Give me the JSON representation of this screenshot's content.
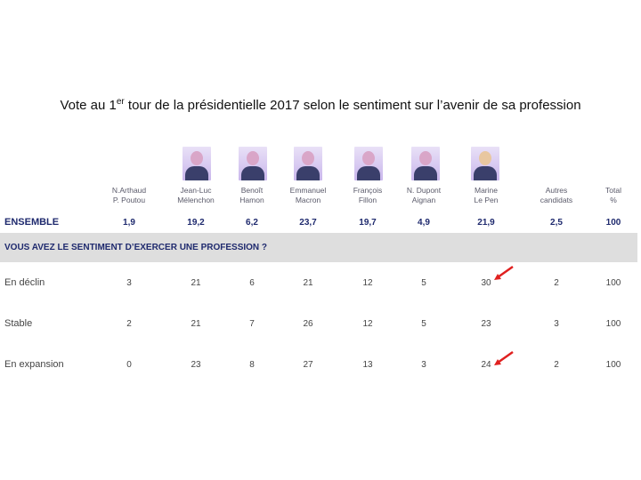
{
  "chart_data": {
    "type": "table",
    "title": "Vote au 1er tour de la présidentielle 2017 selon le sentiment sur l’avenir de sa profession",
    "title_parts": {
      "before": "Vote au 1",
      "superscript": "er",
      "after": " tour de la présidentielle 2017 selon le sentiment sur l’avenir de sa profession"
    },
    "columns": [
      {
        "line1": "N.Arthaud",
        "line2": "P. Poutou"
      },
      {
        "line1": "Jean-Luc",
        "line2": "Mélenchon"
      },
      {
        "line1": "Benoît",
        "line2": "Hamon"
      },
      {
        "line1": "Emmanuel",
        "line2": "Macron"
      },
      {
        "line1": "François",
        "line2": "Fillon"
      },
      {
        "line1": "N. Dupont",
        "line2": "Aignan"
      },
      {
        "line1": "Marine",
        "line2": "Le Pen"
      },
      {
        "line1": "Autres",
        "line2": "candidats"
      },
      {
        "line1": "Total",
        "line2": "%"
      }
    ],
    "ensemble": {
      "label": "ENSEMBLE",
      "values": [
        "1,9",
        "19,2",
        "6,2",
        "23,7",
        "19,7",
        "4,9",
        "21,9",
        "2,5",
        "100"
      ]
    },
    "section_label": "VOUS AVEZ LE SENTIMENT D’EXERCER UNE PROFESSION ?",
    "rows": [
      {
        "label": "En déclin",
        "values": [
          "3",
          "21",
          "6",
          "21",
          "12",
          "5",
          "30",
          "2",
          "100"
        ]
      },
      {
        "label": "Stable",
        "values": [
          "2",
          "21",
          "7",
          "26",
          "12",
          "5",
          "23",
          "3",
          "100"
        ]
      },
      {
        "label": "En expansion",
        "values": [
          "0",
          "23",
          "8",
          "27",
          "13",
          "3",
          "24",
          "2",
          "100"
        ]
      }
    ],
    "highlight": {
      "column": "Marine Le Pen",
      "rows": [
        "En déclin",
        "En expansion"
      ],
      "arrow_color": "#e0201f"
    }
  },
  "photo_icons": [
    "arthaud-poutou-photo",
    "melenchon-photo",
    "hamon-photo",
    "macron-photo",
    "fillon-photo",
    "dupont-aignan-photo",
    "le-pen-photo"
  ],
  "colors": {
    "navy": "#1f2a6e",
    "band": "#dedede",
    "arrow": "#e0201f"
  }
}
